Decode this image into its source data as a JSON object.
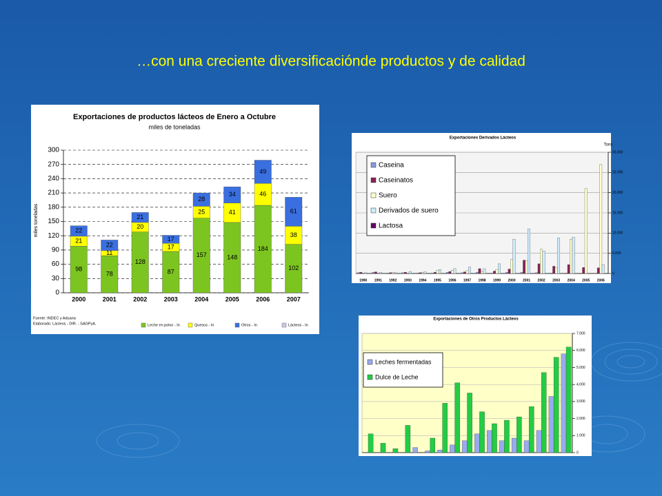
{
  "title": "…con una creciente diversificaciónde productos y de calidad",
  "chart_data": [
    {
      "type": "bar",
      "stacked": true,
      "title": "Exportaciones de productos lácteos de Enero a Octubre",
      "subtitle": "miles de toneladas",
      "y_label": "miles toneladas",
      "notes": [
        "Fuente: INDEC y Aduana",
        "Elaborado: Lácteos - DIR. - SAGPyA."
      ],
      "categories": [
        "2000",
        "2001",
        "2002",
        "2003",
        "2004",
        "2005",
        "2006",
        "2007"
      ],
      "series": [
        {
          "name": "Leche en polvo - In",
          "color": "#7cc520",
          "values": [
            98,
            78,
            128,
            87,
            157,
            148,
            184,
            102
          ]
        },
        {
          "name": "Quesos - In",
          "color": "#ffff00",
          "values": [
            21,
            11,
            20,
            17,
            25,
            41,
            46,
            38
          ]
        },
        {
          "name": "Otros - In",
          "color": "#3a6fe0",
          "values": [
            22,
            22,
            21,
            17,
            28,
            34,
            49,
            61
          ]
        },
        {
          "name": "Lácteos - In",
          "color": "#c8c8e8",
          "values": [
            null,
            null,
            null,
            null,
            null,
            null,
            null,
            null
          ]
        }
      ],
      "show_values": true,
      "ylim": [
        0,
        300
      ],
      "yticks": [
        0,
        30,
        60,
        90,
        120,
        150,
        180,
        210,
        240,
        270,
        300
      ],
      "grid": true
    },
    {
      "type": "bar",
      "stacked": false,
      "title": "Exportaciones Derivados Lácteos",
      "y_label": "Tons",
      "categories": [
        "1990",
        "1991",
        "1992",
        "1993",
        "1994",
        "1995",
        "1996",
        "1997",
        "1998",
        "1999",
        "2000",
        "2001",
        "2002",
        "2003",
        "2004",
        "2005",
        "2006"
      ],
      "series": [
        {
          "name": "Caseina",
          "color": "#8899dd",
          "values": [
            200,
            300,
            100,
            200,
            100,
            100,
            300,
            200,
            300,
            100,
            300,
            300,
            200,
            100,
            100,
            0,
            0
          ]
        },
        {
          "name": "Caseinatos",
          "color": "#882255",
          "values": [
            300,
            400,
            200,
            300,
            200,
            300,
            500,
            400,
            1200,
            600,
            1100,
            3300,
            2400,
            1800,
            2200,
            1500,
            1400
          ]
        },
        {
          "name": "Suero",
          "color": "#ffffcc",
          "values": [
            100,
            100,
            300,
            100,
            300,
            800,
            800,
            700,
            500,
            1000,
            3500,
            3200,
            6000,
            1500,
            8500,
            21000,
            27000
          ]
        },
        {
          "name": "Derivados de suero",
          "color": "#ccecff",
          "values": [
            200,
            300,
            200,
            500,
            400,
            1000,
            1200,
            1600,
            1200,
            2400,
            8500,
            11000,
            5600,
            8800,
            9000,
            0,
            2200
          ]
        },
        {
          "name": "Lactosa",
          "color": "#660066",
          "values": [
            0,
            0,
            0,
            0,
            0,
            0,
            0,
            0,
            0,
            0,
            0,
            0,
            0,
            0,
            0,
            0,
            0
          ]
        }
      ],
      "ylim": [
        0,
        30000
      ],
      "yticks": [
        0,
        {
          "value": 5000,
          "label": "5.000"
        },
        {
          "value": 10000,
          "label": "10.000"
        },
        {
          "value": 15000,
          "label": "15.000"
        },
        {
          "value": 20000,
          "label": "20.000"
        },
        {
          "value": 25000,
          "label": "25.000"
        },
        {
          "value": 30000,
          "label": "30.000"
        }
      ],
      "grid": true
    },
    {
      "type": "bar",
      "stacked": false,
      "title": "Exportaciones de Otros Productos Lácteos",
      "categories": [
        null,
        null,
        null,
        null,
        null,
        null,
        null,
        null,
        null,
        null,
        null,
        null,
        null,
        null,
        null,
        null,
        null
      ],
      "series": [
        {
          "name": "Leches fermentadas",
          "color": "#99aaee",
          "values": [
            0,
            0,
            0,
            0,
            300,
            100,
            150,
            450,
            700,
            1100,
            1300,
            700,
            850,
            700,
            1300,
            3300,
            5800
          ]
        },
        {
          "name": "Dulce de Leche",
          "color": "#22cc44",
          "values": [
            1100,
            550,
            230,
            1600,
            0,
            850,
            2900,
            4100,
            3500,
            2400,
            1700,
            1900,
            2100,
            2700,
            4700,
            5600,
            6200
          ]
        }
      ],
      "ylim": [
        0,
        7000
      ],
      "yticks": [
        0,
        {
          "value": 1000,
          "label": "1.000"
        },
        {
          "value": 2000,
          "label": "2.000"
        },
        {
          "value": 3000,
          "label": "3.000"
        },
        {
          "value": 4000,
          "label": "4.000"
        },
        {
          "value": 5000,
          "label": "5.000"
        },
        {
          "value": 6000,
          "label": "6.000"
        },
        {
          "value": 7000,
          "label": "7.000"
        }
      ],
      "grid": true
    }
  ]
}
